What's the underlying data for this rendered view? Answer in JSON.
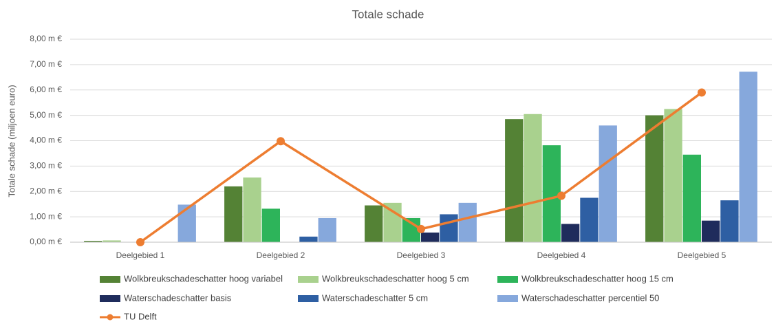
{
  "chart_data": {
    "type": "bar",
    "title": "Totale schade",
    "y_label": "Totale schade (miljoen euro)",
    "categories": [
      "Deelgebied 1",
      "Deelgebied 2",
      "Deelgebied 3",
      "Deelgebied 4",
      "Deelgebied 5"
    ],
    "series": [
      {
        "name": "Wolkbreukschadeschatter hoog variabel",
        "color": "#548235",
        "values": [
          0.05,
          2.2,
          1.45,
          4.85,
          5.0
        ]
      },
      {
        "name": "Wolkbreukschadeschatter hoog 5 cm",
        "color": "#a9d18e",
        "values": [
          0.07,
          2.55,
          1.55,
          5.05,
          5.25
        ]
      },
      {
        "name": "Wolkbreukschadeschatter hoog 15 cm",
        "color": "#2db45a",
        "values": [
          0,
          1.32,
          0.95,
          3.82,
          3.45
        ]
      },
      {
        "name": "Waterschadeschatter basis",
        "color": "#1f2c5c",
        "values": [
          0,
          0,
          0.38,
          0.72,
          0.85
        ]
      },
      {
        "name": "Waterschadeschatter 5 cm",
        "color": "#2e5fa3",
        "values": [
          0,
          0.22,
          1.1,
          1.75,
          1.65
        ]
      },
      {
        "name": "Waterschadeschatter percentiel 50",
        "color": "#86a8dc",
        "values": [
          1.48,
          0.95,
          1.55,
          4.6,
          6.72
        ]
      },
      {
        "name": "TU Delft",
        "color": "#ed7d31",
        "type": "line",
        "values": [
          0,
          3.98,
          0.52,
          1.83,
          5.9
        ]
      }
    ],
    "ylim": [
      0,
      8
    ],
    "yticks": [
      {
        "value": 0,
        "label": "0,00 m €"
      },
      {
        "value": 1,
        "label": "1,00 m €"
      },
      {
        "value": 2,
        "label": "2,00 m €"
      },
      {
        "value": 3,
        "label": "3,00 m €"
      },
      {
        "value": 4,
        "label": "4,00 m €"
      },
      {
        "value": 5,
        "label": "5,00 m €"
      },
      {
        "value": 6,
        "label": "6,00 m €"
      },
      {
        "value": 7,
        "label": "7,00 m €"
      },
      {
        "value": 8,
        "label": "8,00 m €"
      }
    ],
    "grid": true,
    "legend": "bottom"
  }
}
